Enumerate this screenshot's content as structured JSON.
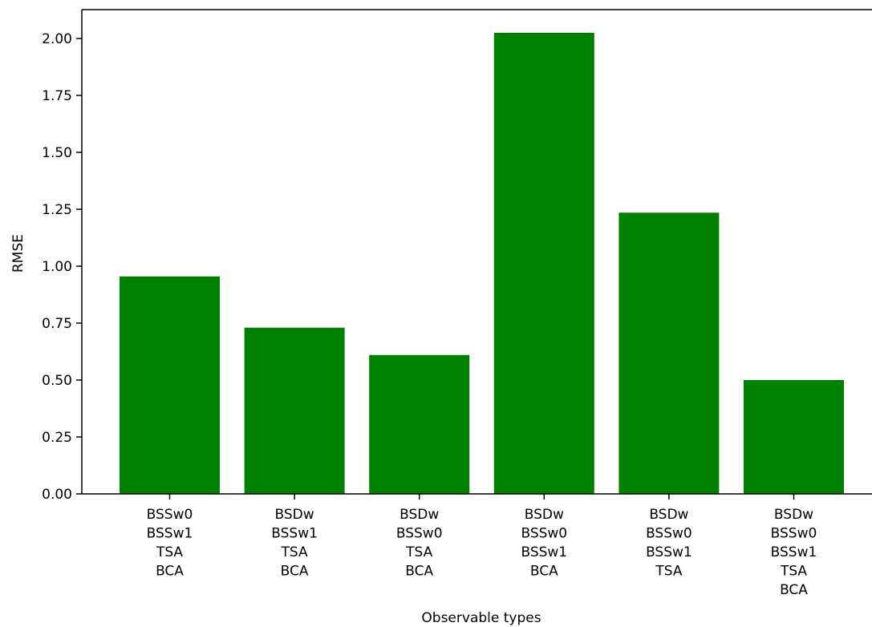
{
  "chart_data": {
    "type": "bar",
    "categories": [
      [
        "BSSw0",
        "BSSw1",
        "TSA",
        "BCA"
      ],
      [
        "BSDw",
        "BSSw1",
        "TSA",
        "BCA"
      ],
      [
        "BSDw",
        "BSSw0",
        "TSA",
        "BCA"
      ],
      [
        "BSDw",
        "BSSw0",
        "BSSw1",
        "BCA"
      ],
      [
        "BSDw",
        "BSSw0",
        "BSSw1",
        "TSA"
      ],
      [
        "BSDw",
        "BSSw0",
        "BSSw1",
        "TSA",
        "BCA"
      ]
    ],
    "values": [
      0.955,
      0.73,
      0.61,
      2.025,
      1.235,
      0.5
    ],
    "xlabel": "Observable types",
    "ylabel": "RMSE",
    "ylim": [
      0,
      2.13
    ],
    "yticks": [
      "0.00",
      "0.25",
      "0.50",
      "0.75",
      "1.00",
      "1.25",
      "1.50",
      "1.75",
      "2.00"
    ],
    "bar_color": "#008000",
    "grid": false
  }
}
